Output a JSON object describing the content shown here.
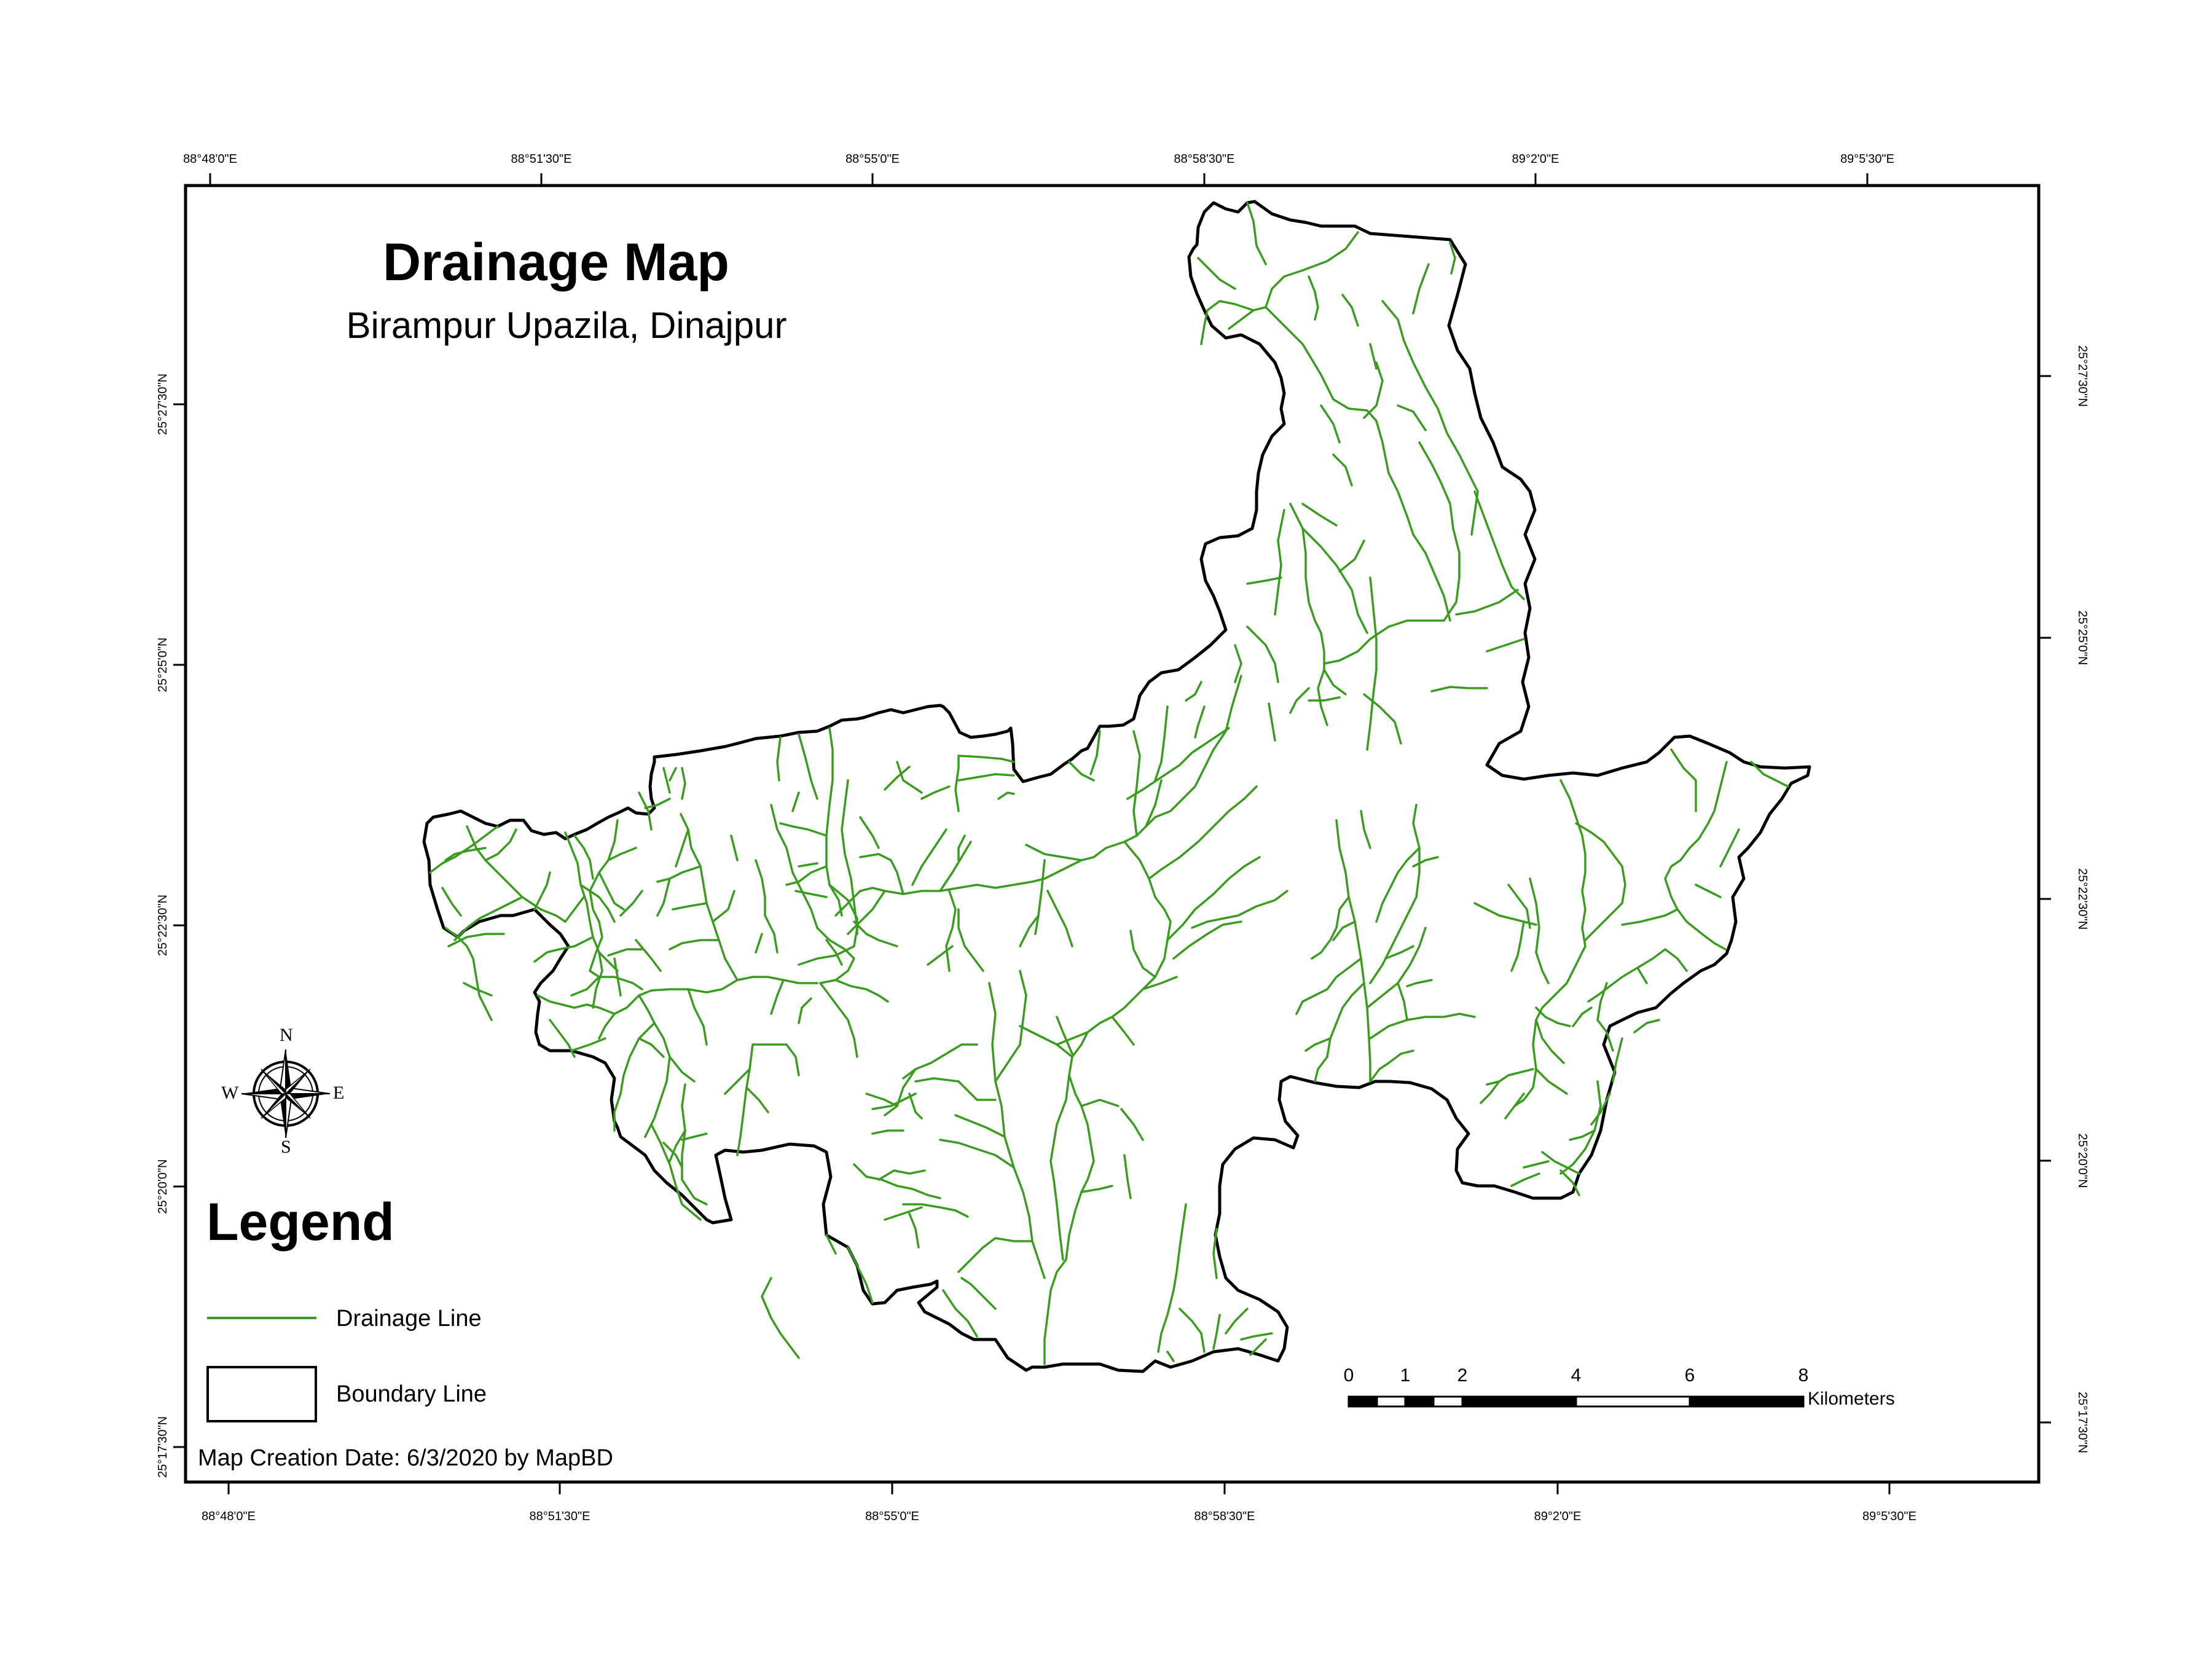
{
  "title": "Drainage Map",
  "subtitle": "Birampur Upazila, Dinajpur",
  "legend": {
    "heading": "Legend",
    "items": [
      {
        "label": "Drainage Line",
        "symbol": "line",
        "color": "#3a9c1e"
      },
      {
        "label": "Boundary Line",
        "symbol": "box",
        "color": "#000000"
      }
    ]
  },
  "credit": "Map Creation Date: 6/3/2020 by MapBD",
  "longitude_ticks_top": [
    "88°48'0\"E",
    "88°51'30\"E",
    "88°55'0\"E",
    "88°58'30\"E",
    "89°2'0\"E",
    "89°5'30\"E"
  ],
  "longitude_ticks_bottom": [
    "88°48'0\"E",
    "88°51'30\"E",
    "88°55'0\"E",
    "88°58'30\"E",
    "89°2'0\"E",
    "89°5'30\"E"
  ],
  "latitude_ticks_left": [
    "25°27'30\"N",
    "25°25'0\"N",
    "25°22'30\"N",
    "25°20'0\"N",
    "25°17'30\"N"
  ],
  "latitude_ticks_right": [
    "25°27'30\"N",
    "25°25'0\"N",
    "25°22'30\"N",
    "25°20'0\"N",
    "25°17'30\"N"
  ],
  "compass": {
    "n": "N",
    "s": "S",
    "e": "E",
    "w": "W"
  },
  "scale_bar": {
    "labels": [
      "0",
      "1",
      "2",
      "4",
      "6",
      "8"
    ],
    "unit": "Kilometers"
  },
  "colors": {
    "drainage": "#3a9c1e",
    "boundary": "#000000",
    "background": "#ffffff"
  }
}
